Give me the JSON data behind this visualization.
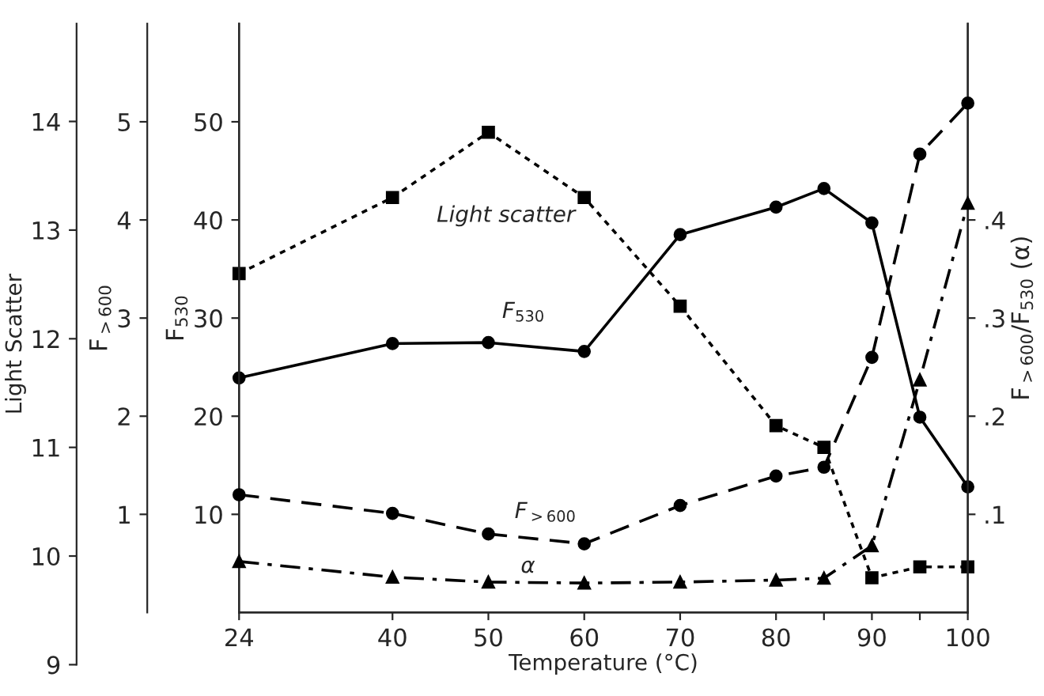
{
  "chart_data": [
    {
      "type": "line",
      "ylabel": "Light Scatter",
      "tick_labels": "y",
      "x": [
        24,
        40,
        50,
        60,
        70,
        80,
        85,
        90,
        95,
        100
      ],
      "xlim": [
        24,
        100
      ],
      "ylim": [
        9,
        14.9
      ],
      "yticks": [
        9,
        10,
        11,
        12,
        13,
        14
      ],
      "grid": false,
      "series": [
        {
          "name": "Light scatter",
          "color": "#000000",
          "marker": "square",
          "line_style": "dotted",
          "values": [
            12.6,
            13.3,
            13.9,
            13.3,
            12.3,
            11.2,
            11.0,
            9.8,
            9.9,
            9.9
          ]
        }
      ]
    },
    {
      "type": "line",
      "xlabel": "Temperature (°C)",
      "ylabel": "F$_{530}$",
      "y2label": "F$_{>600}$/F$_{530}$ (α)",
      "y3label": "F$_{>600}$",
      "x": [
        24,
        40,
        50,
        60,
        70,
        80,
        85,
        90,
        95,
        100
      ],
      "xlim": [
        24,
        100
      ],
      "xticks": [
        24,
        40,
        50,
        60,
        70,
        80,
        {
          "value": 85,
          "label": null
        },
        90,
        {
          "value": 95,
          "label": null
        },
        100
      ],
      "ylim": [
        0,
        60
      ],
      "yticks": [
        10,
        20,
        30,
        40,
        50
      ],
      "y2lim": [
        0,
        0.6
      ],
      "y2ticks": [
        {
          "value": 0.1,
          "label": ".1"
        },
        {
          "value": 0.2,
          "label": ".2"
        },
        {
          "value": 0.3,
          "label": ".3"
        },
        {
          "value": 0.4,
          "label": ".4"
        }
      ],
      "y3lim": [
        0,
        6
      ],
      "y3ticks": [
        1,
        2,
        3,
        4,
        5
      ],
      "grid": false,
      "series": [
        {
          "name": "F$_{530}$",
          "color": "#000000",
          "marker": "circle",
          "line_style": "solid",
          "values": [
            23.9,
            27.4,
            27.5,
            26.6,
            38.5,
            41.3,
            43.2,
            39.7,
            19.9,
            12.8
          ]
        },
        {
          "name": "F$_{>600}$",
          "axis": "y3",
          "color": "#000000",
          "marker": "circle",
          "line_style": "dashed",
          "values": [
            1.2,
            1.01,
            0.8,
            0.7,
            1.09,
            1.39,
            1.48,
            2.6,
            4.67,
            5.19
          ]
        },
        {
          "name": "α",
          "axis": "y2",
          "color": "#000000",
          "marker": "triangle",
          "line_style": "dashdot",
          "values": [
            0.052,
            0.036,
            0.031,
            0.03,
            0.031,
            0.033,
            0.035,
            0.068,
            0.237,
            0.417
          ]
        }
      ]
    }
  ]
}
